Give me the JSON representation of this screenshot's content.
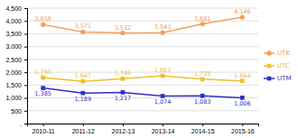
{
  "chart_data": {
    "type": "line",
    "categories": [
      "2010-11",
      "2011-12",
      "2012-13",
      "2013-14",
      "2014-15",
      "2015-16"
    ],
    "series": [
      {
        "name": "UTK",
        "color": "#f0a060",
        "marker": "circle",
        "values": [
          3858,
          3571,
          3532,
          3543,
          3881,
          4146
        ],
        "value_labels": [
          "3,858",
          "3,571",
          "3,532",
          "3,543",
          "3,881",
          "4,146"
        ]
      },
      {
        "name": "UTC",
        "color": "#f0c030",
        "marker": "square",
        "values": [
          1793,
          1647,
          1749,
          1863,
          1728,
          1664
        ],
        "value_labels": [
          "1,793",
          "1,647",
          "1,749",
          "1,863",
          "1,728",
          "1,664"
        ]
      },
      {
        "name": "UTM",
        "color": "#3030c0",
        "marker": "square",
        "values": [
          1385,
          1189,
          1217,
          1074,
          1083,
          1006
        ],
        "value_labels": [
          "1,385",
          "1,189",
          "1,217",
          "1,074",
          "1,083",
          "1,006"
        ]
      }
    ],
    "ylim": [
      0,
      4500
    ],
    "yticks": [
      {
        "value": 0,
        "label": "."
      },
      500,
      {
        "value": 1000,
        "label": "1,000"
      },
      {
        "value": 1500,
        "label": "1,500"
      },
      {
        "value": 2000,
        "label": "2,000"
      },
      {
        "value": 2500,
        "label": "2,500"
      },
      {
        "value": 3000,
        "label": "3,000"
      },
      {
        "value": 3500,
        "label": "3,500"
      },
      {
        "value": 4000,
        "label": "4,000"
      },
      {
        "value": 4500,
        "label": "4,500"
      }
    ],
    "grid": true,
    "data_labels": true,
    "legend": "right"
  }
}
